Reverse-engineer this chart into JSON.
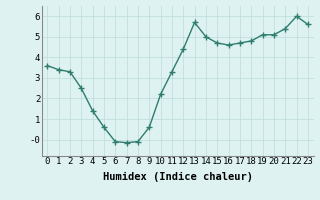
{
  "x": [
    0,
    1,
    2,
    3,
    4,
    5,
    6,
    7,
    8,
    9,
    10,
    11,
    12,
    13,
    14,
    15,
    16,
    17,
    18,
    19,
    20,
    21,
    22,
    23
  ],
  "y": [
    3.6,
    3.4,
    3.3,
    2.5,
    1.4,
    0.6,
    -0.1,
    -0.15,
    -0.1,
    0.6,
    2.2,
    3.3,
    4.4,
    5.7,
    5.0,
    4.7,
    4.6,
    4.7,
    4.8,
    5.1,
    5.1,
    5.4,
    6.0,
    5.6
  ],
  "line_color": "#2e7d6e",
  "marker": "+",
  "marker_size": 4,
  "bg_color": "#dff2f2",
  "grid_color": "#c0dede",
  "xlabel": "Humidex (Indice chaleur)",
  "xlabel_fontsize": 7.5,
  "tick_fontsize": 6.5,
  "ylim": [
    -0.8,
    6.5
  ],
  "xlim": [
    -0.5,
    23.5
  ],
  "yticks": [
    0,
    1,
    2,
    3,
    4,
    5,
    6
  ],
  "ytick_labels": [
    "-0",
    "1",
    "2",
    "3",
    "4",
    "5",
    "6"
  ],
  "xticks": [
    0,
    1,
    2,
    3,
    4,
    5,
    6,
    7,
    8,
    9,
    10,
    11,
    12,
    13,
    14,
    15,
    16,
    17,
    18,
    19,
    20,
    21,
    22,
    23
  ]
}
